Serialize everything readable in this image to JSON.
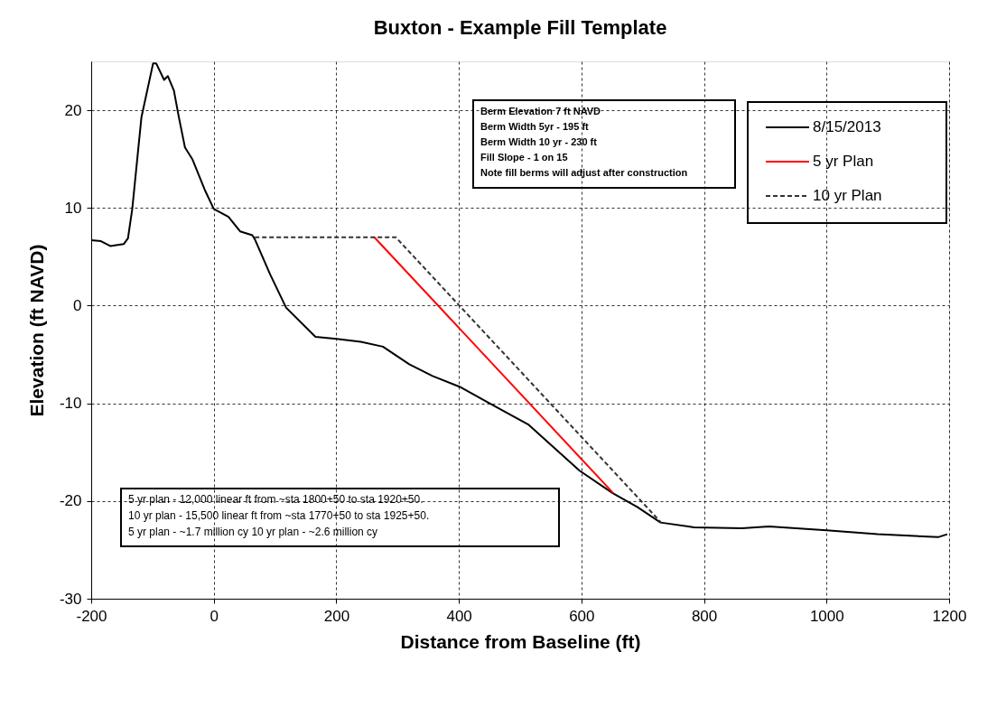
{
  "chart_data": {
    "type": "line",
    "title": "Buxton - Example Fill Template",
    "xlabel": "Distance from Baseline (ft)",
    "ylabel": "Elevation (ft NAVD)",
    "xlim": [
      -200,
      1200
    ],
    "xticks": [
      -200,
      0,
      200,
      400,
      600,
      800,
      1000,
      1200
    ],
    "ylim": [
      -30,
      25
    ],
    "yticks": [
      -30,
      -20,
      -10,
      0,
      10,
      20
    ],
    "grid": true,
    "legend": "top right",
    "series": [
      {
        "name": "8/15/2013",
        "color": "#000000",
        "line_style": "solid",
        "x": [
          -200,
          -184,
          -169,
          -147,
          -140,
          -133,
          -118,
          -110,
          -99,
          -94,
          -81,
          -75,
          -65,
          -57,
          -47,
          -35,
          -15,
          0,
          24,
          43,
          63,
          67,
          92,
          118,
          166,
          200,
          240,
          276,
          319,
          357,
          401,
          450,
          514,
          597,
          651,
          691,
          729,
          784,
          862,
          906,
          1000,
          1083,
          1182,
          1197
        ],
        "values": [
          6.7,
          6.6,
          6.1,
          6.3,
          6.9,
          9.9,
          19.3,
          21.6,
          24.8,
          24.8,
          23.1,
          23.5,
          22.0,
          19.3,
          16.2,
          15.0,
          11.9,
          9.9,
          9.1,
          7.6,
          7.2,
          6.8,
          3.2,
          -0.2,
          -3.2,
          -3.4,
          -3.7,
          -4.2,
          -6.0,
          -7.2,
          -8.3,
          -10.0,
          -12.2,
          -16.9,
          -19.2,
          -20.6,
          -22.2,
          -22.7,
          -22.8,
          -22.6,
          -23.0,
          -23.4,
          -23.7,
          -23.4
        ]
      },
      {
        "name": "5 yr Plan",
        "color": "#ff0000",
        "line_style": "solid",
        "x": [
          262,
          652
        ],
        "values": [
          7,
          -19.2
        ]
      },
      {
        "name": "10 yr Plan",
        "color": "#333333",
        "line_style": "dashed",
        "x": [
          67,
          297,
          730
        ],
        "values": [
          7,
          7,
          -22.2
        ]
      }
    ],
    "annotations": [
      "Berm Elevation 7 ft NAVD\nBerm Width 5yr - 195 ft\nBerm Width 10 yr - 230 ft\nFill Slope - 1 on 15\nNote fill berms will adjust after construction",
      "5 yr plan - 12,000 linear ft from ~sta 1800+50 to sta 1920+50.\n10 yr plan - 15,500 linear ft from ~sta 1770+50 to sta 1925+50.\n5 yr plan - ~1.7 million cy            10 yr plan - ~2.6 million cy"
    ]
  }
}
